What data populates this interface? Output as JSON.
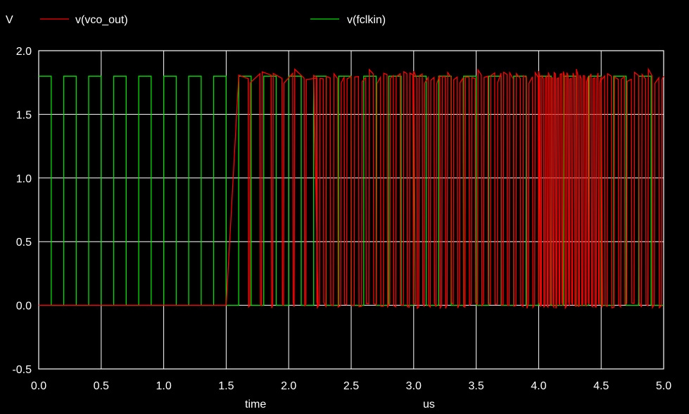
{
  "chart_data": {
    "type": "line",
    "ylabel": "V",
    "xlabel": "time",
    "xunit": "us",
    "xlim": [
      0.0,
      5.0
    ],
    "ylim": [
      -0.5,
      2.0
    ],
    "x_ticks": [
      "0.0",
      "0.5",
      "1.0",
      "1.5",
      "2.0",
      "2.5",
      "3.0",
      "3.5",
      "4.0",
      "4.5",
      "5.0"
    ],
    "y_ticks": [
      "2.0",
      "1.5",
      "1.0",
      "0.5",
      "0.0",
      "-0.5"
    ],
    "x_tick_values": [
      0.0,
      0.5,
      1.0,
      1.5,
      2.0,
      2.5,
      3.0,
      3.5,
      4.0,
      4.5,
      5.0
    ],
    "y_tick_values": [
      2.0,
      1.5,
      1.0,
      0.5,
      0.0,
      -0.5
    ],
    "grid": true,
    "background_color": "#000000",
    "grid_color": "#ffffff",
    "series": [
      {
        "name": "v(vco_out)",
        "color": "#ff0000",
        "high": 1.8,
        "low": 0.0,
        "rise_start": 1.5,
        "rise_end": 1.6,
        "periods": [
          {
            "from": 1.6,
            "to": 2.2,
            "period": 0.09,
            "duty": 0.85
          },
          {
            "from": 2.2,
            "to": 3.0,
            "period": 0.05,
            "duty": 0.55
          },
          {
            "from": 3.0,
            "to": 4.0,
            "period": 0.045,
            "duty": 0.6
          },
          {
            "from": 4.0,
            "to": 4.5,
            "period": 0.022,
            "duty": 0.5
          },
          {
            "from": 4.5,
            "to": 5.0,
            "period": 0.05,
            "duty": 0.6
          }
        ]
      },
      {
        "name": "v(fclkin)",
        "color": "#00e000",
        "high": 1.8,
        "low": 0.0,
        "period": 0.2,
        "duty": 0.5
      }
    ]
  }
}
